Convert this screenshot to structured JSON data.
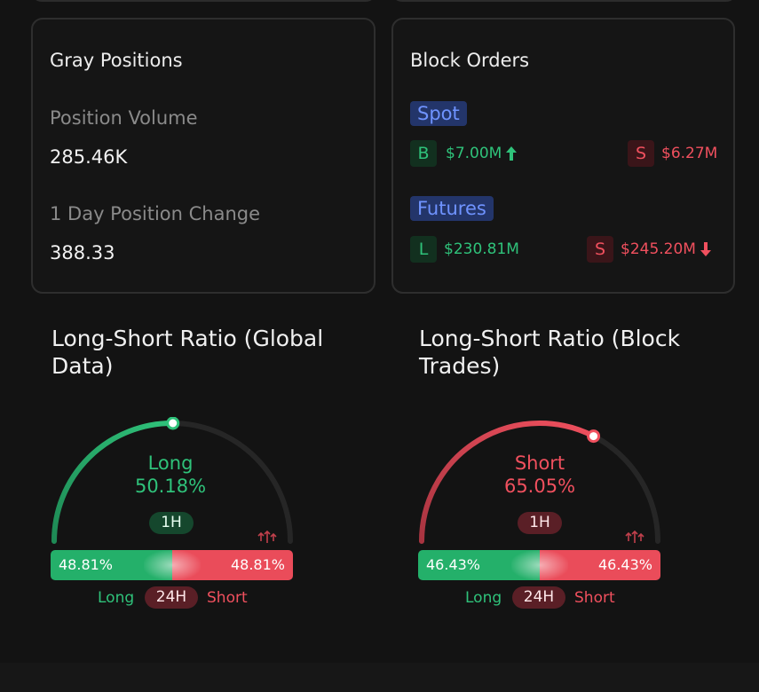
{
  "gray_positions": {
    "title": "Gray Positions",
    "position_volume_label": "Position Volume",
    "position_volume_value": "285.46K",
    "day_change_label": "1 Day Position Change",
    "day_change_value": "388.33"
  },
  "block_orders": {
    "title": "Block Orders",
    "spot": {
      "tag": "Spot",
      "buy_badge": "B",
      "buy_value": "$7.00M",
      "sell_badge": "S",
      "sell_value": "$6.27M"
    },
    "futures": {
      "tag": "Futures",
      "long_badge": "L",
      "long_value": "$230.81M",
      "short_badge": "S",
      "short_value": "$245.20M"
    }
  },
  "global_ratio": {
    "title": "Long-Short Ratio (Global Data)",
    "side": "Long",
    "percent": "50.18%",
    "gauge_fraction": 0.5018,
    "timeframe": "1H",
    "bar_left": "48.81%",
    "bar_right": "48.81%",
    "bar_fraction": 0.5,
    "legend_long": "Long",
    "legend_period": "24H",
    "legend_short": "Short"
  },
  "block_ratio": {
    "title": "Long-Short Ratio (Block Trades)",
    "side": "Short",
    "percent": "65.05%",
    "gauge_fraction": 0.6505,
    "timeframe": "1H",
    "bar_left": "46.43%",
    "bar_right": "46.43%",
    "bar_fraction": 0.5,
    "legend_long": "Long",
    "legend_period": "24H",
    "legend_short": "Short"
  },
  "colors": {
    "long": "#2fc27a",
    "short": "#f0505e",
    "accent_tag": "#6f93ff"
  },
  "icons": {
    "up_arrow": "arrow-up-icon",
    "down_arrow": "arrow-down-icon",
    "sparkle": "trend-arrows-icon"
  }
}
